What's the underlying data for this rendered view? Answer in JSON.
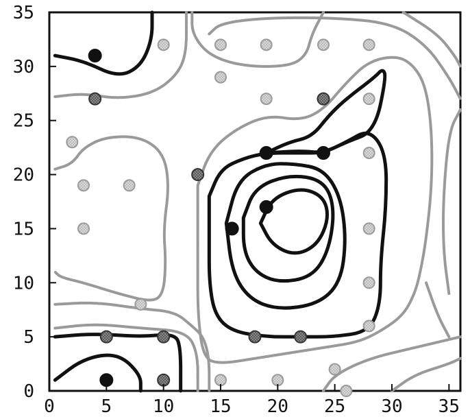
{
  "chart_data": {
    "type": "scatter",
    "title": "",
    "xlabel": "",
    "ylabel": "",
    "xlim": [
      0,
      36
    ],
    "ylim": [
      0,
      35
    ],
    "xticks": [
      "0",
      "5",
      "10",
      "15",
      "20",
      "25",
      "30",
      "35"
    ],
    "yticks": [
      "0",
      "5",
      "10",
      "15",
      "20",
      "25",
      "30",
      "35"
    ],
    "grid": false,
    "legend": "none",
    "colors": {
      "black_point": "#111111",
      "dark_gray_point": "#444444",
      "light_gray_point": "#a8a8a8",
      "black_contour": "#111111",
      "gray_contour": "#9a9a9a",
      "axis": "#111111"
    },
    "series": [
      {
        "category": "black",
        "points": [
          [
            4,
            31
          ],
          [
            5,
            1
          ],
          [
            19,
            22
          ],
          [
            24,
            22
          ],
          [
            19,
            17
          ],
          [
            16,
            15
          ]
        ]
      },
      {
        "category": "dark-gray",
        "points": [
          [
            4,
            27
          ],
          [
            13,
            20
          ],
          [
            24,
            27
          ],
          [
            5,
            5
          ],
          [
            10,
            5
          ],
          [
            10,
            1
          ],
          [
            18,
            5
          ],
          [
            22,
            5
          ]
        ]
      },
      {
        "category": "light-gray",
        "points": [
          [
            10,
            32
          ],
          [
            15,
            32
          ],
          [
            19,
            32
          ],
          [
            24,
            32
          ],
          [
            28,
            32
          ],
          [
            15,
            29
          ],
          [
            19,
            27
          ],
          [
            28,
            27
          ],
          [
            2,
            23
          ],
          [
            3,
            19
          ],
          [
            7,
            19
          ],
          [
            3,
            15
          ],
          [
            28,
            22
          ],
          [
            28,
            15
          ],
          [
            28,
            10
          ],
          [
            28,
            6
          ],
          [
            8,
            8
          ],
          [
            15,
            1
          ],
          [
            20,
            1
          ],
          [
            25,
            2
          ],
          [
            26,
            0
          ]
        ]
      }
    ],
    "contours": [
      {
        "color_key": "black_contour",
        "points": [
          [
            0.5,
            31
          ],
          [
            3,
            30.5
          ],
          [
            6,
            29
          ],
          [
            8,
            30
          ],
          [
            9,
            32.5
          ],
          [
            9,
            35
          ]
        ]
      },
      {
        "color_key": "gray_contour",
        "points": [
          [
            0.5,
            27.2
          ],
          [
            3,
            27.5
          ],
          [
            6,
            27
          ],
          [
            9,
            27.5
          ],
          [
            11,
            29
          ],
          [
            12,
            31
          ],
          [
            12,
            35
          ]
        ]
      },
      {
        "color_key": "gray_contour",
        "points": [
          [
            0.5,
            20.5
          ],
          [
            2,
            21
          ],
          [
            3,
            22.5
          ],
          [
            5,
            23.5
          ],
          [
            8,
            23.5
          ],
          [
            10,
            22
          ],
          [
            10.5,
            19
          ],
          [
            10,
            15
          ],
          [
            10.2,
            12
          ],
          [
            10,
            9
          ],
          [
            9,
            8.2
          ],
          [
            6,
            9
          ],
          [
            3,
            10
          ],
          [
            1,
            10.5
          ],
          [
            0.5,
            11
          ]
        ]
      },
      {
        "color_key": "gray_contour",
        "points": [
          [
            0.5,
            8
          ],
          [
            4,
            8.2
          ],
          [
            8,
            7.6
          ],
          [
            11,
            7.3
          ],
          [
            12.5,
            6
          ],
          [
            13.5,
            5
          ],
          [
            14,
            3
          ],
          [
            14,
            0
          ]
        ]
      },
      {
        "color_key": "gray_contour",
        "points": [
          [
            0.5,
            5.8
          ],
          [
            4,
            6.2
          ],
          [
            8,
            5.8
          ],
          [
            12,
            5.5
          ],
          [
            13,
            3.5
          ],
          [
            13,
            0
          ]
        ]
      },
      {
        "color_key": "gray_contour",
        "points": [
          [
            24,
            0
          ],
          [
            25,
            1.5
          ],
          [
            28,
            3
          ],
          [
            32,
            4
          ],
          [
            36,
            5
          ]
        ]
      },
      {
        "color_key": "gray_contour",
        "points": [
          [
            30,
            0
          ],
          [
            32,
            1.5
          ],
          [
            35,
            2.5
          ],
          [
            36,
            3
          ]
        ]
      },
      {
        "color_key": "black_contour",
        "points": [
          [
            0.5,
            1
          ],
          [
            3,
            3
          ],
          [
            6,
            3.5
          ],
          [
            8,
            1.5
          ],
          [
            8,
            0
          ]
        ]
      },
      {
        "color_key": "black_contour",
        "points": [
          [
            0.5,
            5
          ],
          [
            4,
            5.3
          ],
          [
            8,
            5
          ],
          [
            11,
            5.3
          ],
          [
            11.5,
            4
          ],
          [
            11.5,
            0
          ]
        ]
      },
      {
        "color_key": "gray_contour",
        "points": [
          [
            12.5,
            35
          ],
          [
            12.5,
            33
          ],
          [
            14,
            31
          ],
          [
            17,
            30
          ],
          [
            21,
            30
          ],
          [
            22.5,
            31
          ],
          [
            23,
            33
          ],
          [
            24,
            35
          ]
        ]
      },
      {
        "color_key": "gray_contour",
        "points": [
          [
            13,
            19
          ],
          [
            14,
            22
          ],
          [
            16,
            24
          ],
          [
            19,
            25.5
          ],
          [
            22,
            25
          ],
          [
            24,
            26
          ],
          [
            26,
            28.5
          ],
          [
            28,
            30.5
          ],
          [
            30.5,
            31
          ],
          [
            32,
            30
          ],
          [
            33,
            28
          ],
          [
            33.5,
            24
          ],
          [
            33.5,
            19
          ],
          [
            33,
            14
          ],
          [
            32.5,
            11
          ],
          [
            32,
            9
          ],
          [
            31,
            7
          ],
          [
            29,
            5.5
          ],
          [
            27,
            4.5
          ],
          [
            24,
            4
          ],
          [
            21,
            3.5
          ],
          [
            18,
            3
          ],
          [
            15,
            2.5
          ],
          [
            13.5,
            3
          ],
          [
            13,
            7
          ],
          [
            13,
            12
          ],
          [
            13,
            16
          ],
          [
            13,
            19
          ]
        ]
      },
      {
        "color_key": "gray_contour",
        "points": [
          [
            14,
            33
          ],
          [
            15,
            34
          ],
          [
            19,
            34.5
          ],
          [
            25,
            34.5
          ],
          [
            30,
            34
          ],
          [
            33,
            32
          ],
          [
            35,
            29
          ],
          [
            36,
            27
          ]
        ]
      },
      {
        "color_key": "gray_contour",
        "points": [
          [
            31,
            35
          ],
          [
            34,
            33
          ],
          [
            35.5,
            31
          ],
          [
            36,
            30
          ]
        ]
      },
      {
        "color_key": "gray_contour",
        "points": [
          [
            35,
            9
          ],
          [
            34.5,
            13
          ],
          [
            34.5,
            18
          ],
          [
            35,
            24
          ],
          [
            36,
            26
          ]
        ]
      },
      {
        "color_key": "gray_contour",
        "points": [
          [
            35,
            5
          ],
          [
            34,
            7
          ],
          [
            33,
            10
          ]
        ]
      },
      {
        "color_key": "black_contour",
        "points": [
          [
            14,
            18
          ],
          [
            15,
            20.5
          ],
          [
            17,
            21.5
          ],
          [
            19,
            22
          ],
          [
            22,
            22
          ],
          [
            24,
            22
          ],
          [
            26,
            23
          ],
          [
            28,
            24.2
          ],
          [
            29.5,
            22
          ],
          [
            29.5,
            17
          ],
          [
            29,
            12
          ],
          [
            29,
            8
          ],
          [
            28,
            5.5
          ],
          [
            25,
            5
          ],
          [
            22,
            5
          ],
          [
            19,
            5
          ],
          [
            16,
            5.5
          ],
          [
            14.5,
            7
          ],
          [
            14,
            10
          ],
          [
            14,
            14
          ],
          [
            14,
            18
          ]
        ]
      },
      {
        "color_key": "black_contour",
        "points": [
          [
            19,
            22
          ],
          [
            22,
            22.2
          ],
          [
            24,
            22
          ],
          [
            26,
            23
          ],
          [
            28.5,
            24
          ],
          [
            29.5,
            29
          ],
          [
            29.2,
            29.8
          ],
          [
            28.5,
            29
          ],
          [
            26,
            27
          ],
          [
            24.5,
            25.5
          ],
          [
            23,
            23.5
          ],
          [
            21,
            23
          ],
          [
            19,
            22
          ]
        ]
      },
      {
        "color_key": "black_contour",
        "points": [
          [
            15.5,
            15.5
          ],
          [
            16.5,
            19.5
          ],
          [
            19,
            21
          ],
          [
            21.5,
            21
          ],
          [
            24,
            20.5
          ],
          [
            25.5,
            18
          ],
          [
            26,
            14
          ],
          [
            25.5,
            10
          ],
          [
            23.5,
            8
          ],
          [
            20,
            7.5
          ],
          [
            17.5,
            8.5
          ],
          [
            16,
            11
          ],
          [
            15.5,
            15.5
          ]
        ]
      },
      {
        "color_key": "black_contour",
        "points": [
          [
            17,
            16
          ],
          [
            18,
            18.8
          ],
          [
            21,
            20
          ],
          [
            24,
            19.5
          ],
          [
            25,
            17
          ],
          [
            24.5,
            13
          ],
          [
            23,
            10.5
          ],
          [
            20,
            10
          ],
          [
            18,
            11
          ],
          [
            17,
            13
          ],
          [
            17,
            16
          ]
        ]
      },
      {
        "color_key": "black_contour",
        "points": [
          [
            18.5,
            15.5
          ],
          [
            19.5,
            17.8
          ],
          [
            22,
            18.8
          ],
          [
            24,
            18
          ],
          [
            24.5,
            16
          ],
          [
            23.5,
            13.5
          ],
          [
            21.5,
            12.5
          ],
          [
            19.5,
            13.5
          ],
          [
            18.5,
            15.5
          ]
        ]
      }
    ]
  }
}
